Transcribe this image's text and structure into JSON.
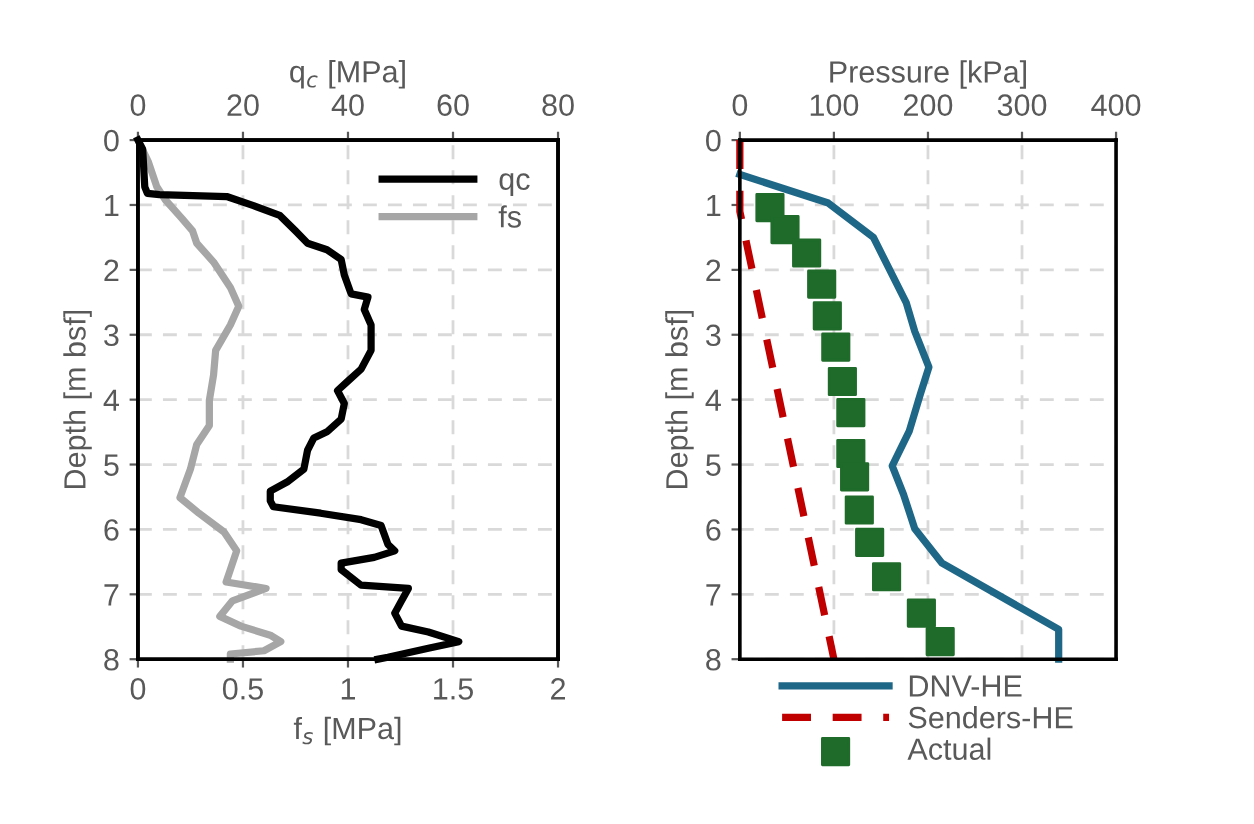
{
  "chart_data": [
    {
      "type": "line",
      "xlabel": "f$_{s}$ [MPa]",
      "x2label": "q$_{c}$ [MPa]",
      "ylabel": "Depth [m bsf]",
      "xlim": [
        0,
        2
      ],
      "xticks": [
        0,
        0.5,
        1,
        1.5,
        2
      ],
      "x2lim": [
        0,
        80
      ],
      "x2ticks": [
        0,
        20,
        40,
        60,
        80
      ],
      "ylim": [
        8,
        0
      ],
      "yticks": [
        0,
        1,
        2,
        3,
        4,
        5,
        6,
        7,
        8
      ],
      "grid": true,
      "legend": "top right",
      "line_style": "solid",
      "marker": "none",
      "series": [
        {
          "name": "qc",
          "color": "#000000",
          "axis": "x2",
          "x": [
            0,
            0.9,
            1.3,
            1.8,
            4.1,
            16.9,
            22,
            27,
            30,
            32.3,
            36,
            38.7,
            39.3,
            40.6,
            43.8,
            43.1,
            44.4,
            44.4,
            42.5,
            39.9,
            38,
            39.3,
            38.7,
            36.1,
            33.5,
            32.3,
            31.6,
            28.4,
            25.2,
            25.2,
            25.8,
            34.8,
            42.5,
            46.3,
            47.6,
            48.9,
            45,
            38.7,
            38.7,
            42.5,
            51.5,
            50.2,
            48.9,
            50.2,
            55.3,
            61.1,
            55.3,
            47.6,
            45.7
          ],
          "values": [
            0,
            0.14,
            0.72,
            0.82,
            0.84,
            0.87,
            1.01,
            1.16,
            1.4,
            1.59,
            1.69,
            1.84,
            2.08,
            2.37,
            2.42,
            2.61,
            2.85,
            3.24,
            3.53,
            3.72,
            3.86,
            4.06,
            4.3,
            4.49,
            4.59,
            4.78,
            5.07,
            5.27,
            5.41,
            5.56,
            5.65,
            5.75,
            5.85,
            5.94,
            6.23,
            6.33,
            6.43,
            6.52,
            6.62,
            6.86,
            6.91,
            7.1,
            7.29,
            7.49,
            7.58,
            7.73,
            7.83,
            7.97,
            8.0
          ]
        },
        {
          "name": "fs",
          "color": "#a6a6a6",
          "x": [
            0,
            0.05,
            0.09,
            0.13,
            0.21,
            0.26,
            0.28,
            0.36,
            0.44,
            0.48,
            0.44,
            0.37,
            0.36,
            0.34,
            0.34,
            0.28,
            0.25,
            0.2,
            0.29,
            0.41,
            0.47,
            0.44,
            0.42,
            0.61,
            0.45,
            0.39,
            0.49,
            0.63,
            0.68,
            0.6,
            0.44,
            0.44
          ],
          "values": [
            0,
            0.34,
            0.72,
            0.92,
            1.21,
            1.4,
            1.59,
            1.88,
            2.27,
            2.56,
            2.85,
            3.24,
            3.62,
            4.01,
            4.4,
            4.69,
            5.07,
            5.51,
            5.75,
            6.04,
            6.33,
            6.62,
            6.81,
            6.91,
            7.1,
            7.34,
            7.49,
            7.63,
            7.73,
            7.87,
            7.92,
            8.0
          ]
        }
      ]
    },
    {
      "type": "line",
      "xlabel": "Pressure [kPa]",
      "ylabel": "Depth [m bsf]",
      "xlim": [
        0,
        400
      ],
      "xticks": [
        0,
        100,
        200,
        300,
        400
      ],
      "ylim": [
        8,
        0
      ],
      "yticks": [
        0,
        1,
        2,
        3,
        4,
        5,
        6,
        7,
        8
      ],
      "grid": true,
      "legend": "bottom",
      "series": [
        {
          "name": "DNV-HE",
          "color": "#1f6787",
          "line_style": "solid",
          "marker": "none",
          "x": [
            0,
            94,
            142,
            177,
            186,
            201,
            192,
            180,
            162,
            174,
            186,
            215,
            339,
            339
          ],
          "values": [
            0.53,
            0.97,
            1.5,
            2.51,
            2.95,
            3.5,
            3.91,
            4.49,
            5.02,
            5.46,
            5.99,
            6.52,
            7.54,
            8.0
          ]
        },
        {
          "name": "Senders-HE",
          "color": "#c00000",
          "line_style": "dashed",
          "marker": "none",
          "x": [
            0,
            0,
            100
          ],
          "values": [
            0,
            1.1,
            8.0
          ]
        },
        {
          "name": "Actual",
          "color": "#1e6b2a",
          "type": "scatter",
          "marker": "square",
          "x": [
            32,
            48,
            71,
            87,
            93,
            102,
            109,
            118,
            118,
            122,
            127,
            138,
            156,
            193,
            213
          ],
          "values": [
            1.04,
            1.38,
            1.74,
            2.22,
            2.71,
            3.19,
            3.72,
            4.2,
            4.83,
            5.19,
            5.7,
            6.2,
            6.73,
            7.29,
            7.73
          ]
        }
      ]
    }
  ]
}
